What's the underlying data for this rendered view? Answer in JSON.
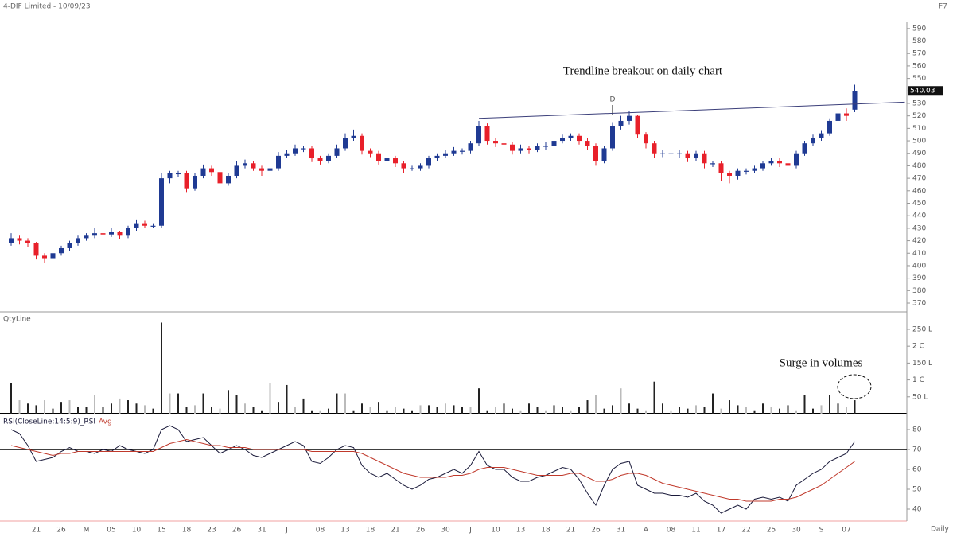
{
  "chart_data": [
    {
      "type": "candlestick",
      "title": "4-DIF Limited - 10/09/23",
      "corner_label": "F7",
      "annotation": "Trendline breakout on daily chart",
      "marker_label": "D",
      "up_color": "#1f3a93",
      "down_color": "#e8202a",
      "open": [
        418,
        422,
        420,
        418,
        408,
        406,
        410,
        414,
        418,
        422,
        424,
        426,
        425,
        427,
        424,
        430,
        434,
        432,
        432,
        470,
        474,
        474,
        462,
        472,
        478,
        475,
        466,
        472,
        480,
        482,
        478,
        476,
        478,
        488,
        490,
        494,
        494,
        486,
        484,
        488,
        494,
        502,
        504,
        492,
        490,
        484,
        486,
        482,
        478,
        478,
        480,
        486,
        488,
        490,
        492,
        492,
        498,
        512,
        500,
        498,
        497,
        492,
        494,
        493,
        496,
        496,
        500,
        502,
        504,
        500,
        496,
        484,
        494,
        512,
        516,
        520,
        505,
        498,
        490,
        490,
        490,
        490,
        486,
        490,
        482,
        482,
        474,
        472,
        476,
        476,
        478,
        482,
        484,
        482,
        480,
        490,
        498,
        502,
        506,
        516,
        522,
        525
      ],
      "high": [
        426,
        424,
        422,
        419,
        410,
        412,
        416,
        420,
        424,
        426,
        430,
        428,
        430,
        428,
        432,
        437,
        436,
        434,
        474,
        476,
        476,
        476,
        474,
        481,
        480,
        477,
        474,
        484,
        485,
        484,
        480,
        482,
        491,
        493,
        497,
        496,
        496,
        488,
        490,
        497,
        506,
        509,
        506,
        494,
        492,
        489,
        488,
        484,
        480,
        482,
        488,
        490,
        493,
        495,
        494,
        500,
        516,
        514,
        502,
        500,
        499,
        497,
        496,
        498,
        499,
        502,
        505,
        506,
        506,
        502,
        498,
        496,
        515,
        520,
        524,
        521,
        507,
        500,
        493,
        492,
        493,
        492,
        492,
        492,
        484,
        484,
        476,
        478,
        478,
        480,
        484,
        486,
        486,
        484,
        492,
        500,
        505,
        508,
        518,
        525,
        526,
        545
      ],
      "low": [
        416,
        417,
        415,
        405,
        402,
        404,
        408,
        412,
        416,
        420,
        422,
        422,
        423,
        421,
        422,
        428,
        430,
        430,
        430,
        466,
        471,
        459,
        460,
        470,
        472,
        464,
        464,
        470,
        478,
        476,
        472,
        473,
        476,
        486,
        488,
        491,
        483,
        481,
        482,
        486,
        492,
        500,
        489,
        487,
        481,
        482,
        479,
        474,
        476,
        476,
        478,
        484,
        486,
        488,
        489,
        490,
        496,
        497,
        495,
        494,
        489,
        490,
        490,
        491,
        493,
        494,
        498,
        500,
        497,
        493,
        480,
        482,
        492,
        509,
        513,
        502,
        494,
        486,
        487,
        487,
        486,
        483,
        484,
        478,
        479,
        468,
        466,
        469,
        473,
        474,
        476,
        480,
        479,
        476,
        478,
        488,
        496,
        500,
        504,
        514,
        516,
        523
      ],
      "close": [
        422,
        420,
        418,
        408,
        406,
        410,
        414,
        418,
        422,
        424,
        426,
        425,
        427,
        424,
        430,
        434,
        432,
        432,
        470,
        474,
        474,
        462,
        472,
        478,
        475,
        466,
        472,
        480,
        482,
        478,
        476,
        478,
        488,
        490,
        494,
        494,
        486,
        484,
        488,
        494,
        502,
        504,
        492,
        490,
        484,
        486,
        482,
        478,
        478,
        480,
        486,
        488,
        490,
        492,
        492,
        498,
        512,
        500,
        498,
        497,
        492,
        494,
        493,
        496,
        496,
        500,
        502,
        504,
        500,
        496,
        484,
        494,
        512,
        516,
        520,
        505,
        498,
        490,
        490,
        490,
        490,
        486,
        490,
        482,
        482,
        474,
        472,
        476,
        476,
        478,
        482,
        484,
        482,
        480,
        490,
        498,
        502,
        506,
        516,
        522,
        520,
        540.03
      ],
      "last_price": 540.03,
      "trendline": {
        "x": [
          56,
          107
        ],
        "y": [
          518,
          531
        ]
      },
      "ylim": [
        363,
        595
      ],
      "yticks": [
        370,
        380,
        390,
        400,
        410,
        420,
        430,
        440,
        450,
        460,
        470,
        480,
        490,
        500,
        510,
        520,
        530,
        540,
        550,
        560,
        570,
        580,
        590
      ]
    },
    {
      "type": "bar",
      "title": "QtyLine",
      "annotation": "Surge in volumes",
      "color": "#222",
      "values": [
        90,
        40,
        30,
        25,
        40,
        15,
        35,
        40,
        20,
        20,
        55,
        20,
        30,
        45,
        40,
        30,
        25,
        15,
        270,
        60,
        60,
        20,
        25,
        60,
        20,
        15,
        70,
        55,
        30,
        20,
        10,
        90,
        35,
        85,
        20,
        45,
        10,
        10,
        15,
        60,
        60,
        10,
        30,
        20,
        35,
        10,
        20,
        15,
        10,
        25,
        25,
        20,
        30,
        25,
        20,
        20,
        75,
        10,
        20,
        30,
        15,
        10,
        30,
        20,
        10,
        25,
        20,
        10,
        20,
        40,
        55,
        15,
        25,
        75,
        30,
        15,
        10,
        95,
        30,
        10,
        20,
        15,
        25,
        20,
        60,
        15,
        40,
        25,
        20,
        10,
        30,
        20,
        15,
        25,
        10,
        55,
        15,
        25,
        55,
        30,
        20,
        40
      ],
      "ylim": [
        0,
        290
      ],
      "yticks": [
        {
          "value": 250,
          "label": "250 L"
        },
        {
          "value": 200,
          "label": "2 C"
        },
        {
          "value": 150,
          "label": "150 L"
        },
        {
          "value": 100,
          "label": "1 C"
        },
        {
          "value": 50,
          "label": "50 L"
        }
      ]
    },
    {
      "type": "line",
      "x_label": "Daily",
      "hline": 70,
      "categories": [
        null,
        null,
        null,
        "21",
        null,
        null,
        "26",
        null,
        null,
        "M",
        null,
        null,
        "05",
        null,
        null,
        "10",
        null,
        null,
        "15",
        null,
        null,
        "18",
        null,
        null,
        "23",
        null,
        null,
        "26",
        null,
        null,
        "31",
        null,
        null,
        "J",
        null,
        null,
        null,
        "08",
        null,
        null,
        "13",
        null,
        null,
        "18",
        null,
        null,
        "21",
        null,
        null,
        "26",
        null,
        null,
        "30",
        null,
        null,
        "J",
        null,
        null,
        "10",
        null,
        null,
        "13",
        null,
        null,
        "18",
        null,
        null,
        "21",
        null,
        null,
        "26",
        null,
        null,
        "31",
        null,
        null,
        "A",
        null,
        null,
        "08",
        null,
        null,
        "11",
        null,
        null,
        "17",
        null,
        null,
        "22",
        null,
        null,
        "25",
        null,
        null,
        "30",
        null,
        null,
        "S",
        null,
        null,
        "07",
        null
      ],
      "series": [
        {
          "name": "RSI(CloseLine:14:5:9)_RSI",
          "color": "#1a1a3a",
          "values": [
            80,
            78,
            72,
            64,
            65,
            66,
            69,
            71,
            69,
            69,
            68,
            70,
            69,
            72,
            70,
            69,
            68,
            70,
            80,
            82,
            80,
            74,
            75,
            76,
            72,
            68,
            70,
            72,
            70,
            67,
            66,
            68,
            70,
            72,
            74,
            72,
            64,
            63,
            66,
            70,
            72,
            71,
            62,
            58,
            56,
            58,
            55,
            52,
            50,
            52,
            55,
            56,
            58,
            60,
            58,
            62,
            69,
            62,
            60,
            60,
            56,
            54,
            54,
            56,
            57,
            59,
            61,
            60,
            55,
            48,
            42,
            52,
            60,
            63,
            64,
            52,
            50,
            48,
            48,
            47,
            47,
            46,
            48,
            44,
            42,
            38,
            40,
            42,
            40,
            45,
            46,
            45,
            46,
            44,
            52,
            55,
            58,
            60,
            64,
            66,
            68,
            74
          ]
        },
        {
          "name": "Avg",
          "color": "#c0392b",
          "values": [
            72,
            71,
            70,
            69,
            68,
            67,
            68,
            68,
            69,
            69,
            69,
            69,
            69,
            69,
            69,
            69,
            69,
            69,
            71,
            73,
            74,
            75,
            74,
            73,
            72,
            72,
            71,
            71,
            71,
            70,
            70,
            70,
            70,
            70,
            70,
            70,
            69,
            69,
            69,
            69,
            69,
            69,
            68,
            66,
            64,
            62,
            60,
            58,
            57,
            56,
            56,
            56,
            56,
            57,
            57,
            58,
            60,
            61,
            61,
            61,
            60,
            59,
            58,
            57,
            57,
            57,
            57,
            58,
            58,
            56,
            54,
            54,
            55,
            57,
            58,
            58,
            57,
            55,
            53,
            52,
            51,
            50,
            49,
            48,
            47,
            46,
            45,
            45,
            44,
            44,
            44,
            44,
            45,
            45,
            46,
            48,
            50,
            52,
            55,
            58,
            61,
            64
          ]
        }
      ],
      "ylim": [
        34,
        86
      ],
      "yticks": [
        40,
        50,
        60,
        70,
        80
      ]
    }
  ]
}
